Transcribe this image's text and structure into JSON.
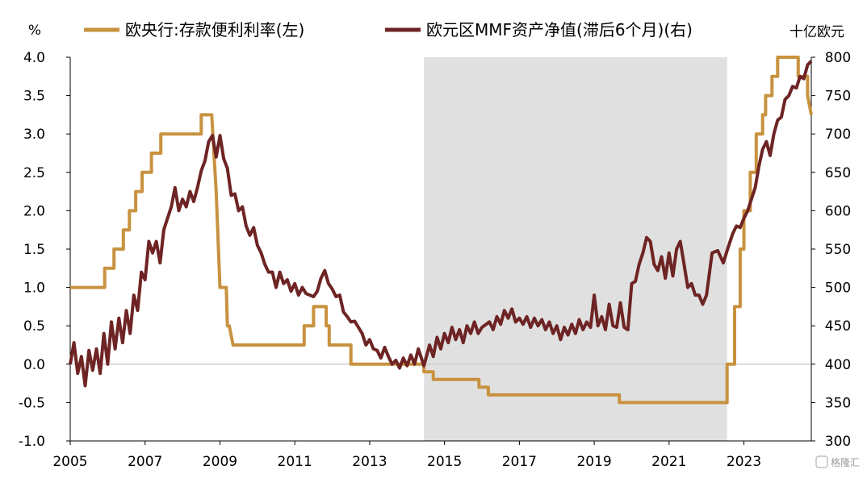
{
  "chart_data": {
    "type": "line",
    "left_unit": "%",
    "right_unit": "十亿欧元",
    "watermark": "格隆汇",
    "legend": [
      "欧央行:存款便利利率(左)",
      "欧元区MMF资产净值(滞后6个月)(右)"
    ],
    "x_ticks": [
      "2005",
      "2007",
      "2009",
      "2011",
      "2013",
      "2015",
      "2017",
      "2019",
      "2021",
      "2023"
    ],
    "y_left_ticks": [
      "4.0",
      "3.5",
      "3.0",
      "2.5",
      "2.0",
      "1.5",
      "1.0",
      "0.5",
      "0.0",
      "-0.5",
      "-1.0"
    ],
    "y_right_ticks": [
      "800",
      "750",
      "700",
      "650",
      "600",
      "550",
      "500",
      "450",
      "400",
      "350",
      "300"
    ],
    "x_range": [
      2005.0,
      2024.8
    ],
    "y_left_range": [
      -1.0,
      4.0
    ],
    "y_right_range": [
      300,
      800
    ],
    "shaded_region": {
      "x_start": 2014.45,
      "x_end": 2022.55,
      "color": "#e0e0e0"
    },
    "colors": {
      "rate": "#c8923f",
      "mmf": "#6e2424",
      "zero_line": "#d0d0d0"
    },
    "series": [
      {
        "name": "欧央行:存款便利利率(左)",
        "axis": "left",
        "points": [
          [
            2005.0,
            1.0
          ],
          [
            2005.92,
            1.0
          ],
          [
            2005.92,
            1.25
          ],
          [
            2006.17,
            1.25
          ],
          [
            2006.17,
            1.5
          ],
          [
            2006.42,
            1.5
          ],
          [
            2006.42,
            1.75
          ],
          [
            2006.58,
            1.75
          ],
          [
            2006.58,
            2.0
          ],
          [
            2006.75,
            2.0
          ],
          [
            2006.75,
            2.25
          ],
          [
            2006.92,
            2.25
          ],
          [
            2006.92,
            2.5
          ],
          [
            2007.17,
            2.5
          ],
          [
            2007.17,
            2.75
          ],
          [
            2007.42,
            2.75
          ],
          [
            2007.42,
            3.0
          ],
          [
            2008.5,
            3.0
          ],
          [
            2008.5,
            3.25
          ],
          [
            2008.78,
            3.25
          ],
          [
            2008.84,
            2.75
          ],
          [
            2008.9,
            2.25
          ],
          [
            2008.96,
            1.5
          ],
          [
            2009.0,
            1.0
          ],
          [
            2009.17,
            1.0
          ],
          [
            2009.2,
            0.5
          ],
          [
            2009.25,
            0.5
          ],
          [
            2009.35,
            0.25
          ],
          [
            2011.25,
            0.25
          ],
          [
            2011.25,
            0.5
          ],
          [
            2011.5,
            0.5
          ],
          [
            2011.5,
            0.75
          ],
          [
            2011.84,
            0.75
          ],
          [
            2011.84,
            0.5
          ],
          [
            2011.92,
            0.5
          ],
          [
            2011.92,
            0.25
          ],
          [
            2012.5,
            0.25
          ],
          [
            2012.5,
            0.0
          ],
          [
            2014.45,
            0.0
          ],
          [
            2014.45,
            -0.1
          ],
          [
            2014.7,
            -0.1
          ],
          [
            2014.7,
            -0.2
          ],
          [
            2015.92,
            -0.2
          ],
          [
            2015.92,
            -0.3
          ],
          [
            2016.17,
            -0.3
          ],
          [
            2016.17,
            -0.4
          ],
          [
            2019.67,
            -0.4
          ],
          [
            2019.67,
            -0.5
          ],
          [
            2022.55,
            -0.5
          ],
          [
            2022.55,
            0.0
          ],
          [
            2022.75,
            0.0
          ],
          [
            2022.75,
            0.75
          ],
          [
            2022.9,
            0.75
          ],
          [
            2022.9,
            1.5
          ],
          [
            2023.0,
            1.5
          ],
          [
            2023.0,
            2.0
          ],
          [
            2023.17,
            2.0
          ],
          [
            2023.17,
            2.5
          ],
          [
            2023.33,
            2.5
          ],
          [
            2023.33,
            3.0
          ],
          [
            2023.5,
            3.0
          ],
          [
            2023.5,
            3.25
          ],
          [
            2023.58,
            3.25
          ],
          [
            2023.58,
            3.5
          ],
          [
            2023.75,
            3.5
          ],
          [
            2023.75,
            3.75
          ],
          [
            2023.9,
            3.75
          ],
          [
            2023.9,
            4.0
          ],
          [
            2024.45,
            4.0
          ],
          [
            2024.45,
            3.75
          ],
          [
            2024.7,
            3.75
          ],
          [
            2024.7,
            3.5
          ],
          [
            2024.8,
            3.25
          ]
        ]
      },
      {
        "name": "欧元区MMF资产净值(滞后6个月)(右)",
        "axis": "right",
        "points": [
          [
            2005.0,
            400
          ],
          [
            2005.1,
            428
          ],
          [
            2005.2,
            388
          ],
          [
            2005.3,
            410
          ],
          [
            2005.4,
            372
          ],
          [
            2005.5,
            418
          ],
          [
            2005.6,
            392
          ],
          [
            2005.7,
            420
          ],
          [
            2005.8,
            388
          ],
          [
            2005.9,
            440
          ],
          [
            2006.0,
            400
          ],
          [
            2006.1,
            455
          ],
          [
            2006.2,
            420
          ],
          [
            2006.3,
            460
          ],
          [
            2006.4,
            428
          ],
          [
            2006.5,
            470
          ],
          [
            2006.6,
            440
          ],
          [
            2006.7,
            490
          ],
          [
            2006.8,
            470
          ],
          [
            2006.9,
            520
          ],
          [
            2007.0,
            510
          ],
          [
            2007.1,
            560
          ],
          [
            2007.2,
            545
          ],
          [
            2007.3,
            560
          ],
          [
            2007.4,
            532
          ],
          [
            2007.5,
            575
          ],
          [
            2007.6,
            590
          ],
          [
            2007.7,
            605
          ],
          [
            2007.8,
            630
          ],
          [
            2007.9,
            600
          ],
          [
            2008.0,
            615
          ],
          [
            2008.1,
            605
          ],
          [
            2008.2,
            625
          ],
          [
            2008.3,
            612
          ],
          [
            2008.4,
            630
          ],
          [
            2008.5,
            652
          ],
          [
            2008.6,
            665
          ],
          [
            2008.7,
            690
          ],
          [
            2008.8,
            698
          ],
          [
            2008.9,
            670
          ],
          [
            2009.0,
            698
          ],
          [
            2009.1,
            668
          ],
          [
            2009.2,
            655
          ],
          [
            2009.3,
            620
          ],
          [
            2009.4,
            622
          ],
          [
            2009.5,
            600
          ],
          [
            2009.6,
            605
          ],
          [
            2009.7,
            580
          ],
          [
            2009.8,
            568
          ],
          [
            2009.9,
            578
          ],
          [
            2010.0,
            555
          ],
          [
            2010.1,
            545
          ],
          [
            2010.2,
            530
          ],
          [
            2010.3,
            520
          ],
          [
            2010.4,
            520
          ],
          [
            2010.5,
            500
          ],
          [
            2010.6,
            520
          ],
          [
            2010.7,
            505
          ],
          [
            2010.8,
            510
          ],
          [
            2010.9,
            495
          ],
          [
            2011.0,
            505
          ],
          [
            2011.1,
            490
          ],
          [
            2011.2,
            500
          ],
          [
            2011.3,
            492
          ],
          [
            2011.5,
            488
          ],
          [
            2011.6,
            495
          ],
          [
            2011.7,
            512
          ],
          [
            2011.8,
            522
          ],
          [
            2011.9,
            505
          ],
          [
            2012.0,
            498
          ],
          [
            2012.1,
            488
          ],
          [
            2012.2,
            490
          ],
          [
            2012.3,
            468
          ],
          [
            2012.4,
            462
          ],
          [
            2012.5,
            455
          ],
          [
            2012.6,
            456
          ],
          [
            2012.7,
            448
          ],
          [
            2012.8,
            440
          ],
          [
            2012.9,
            425
          ],
          [
            2013.0,
            432
          ],
          [
            2013.1,
            420
          ],
          [
            2013.2,
            418
          ],
          [
            2013.3,
            408
          ],
          [
            2013.4,
            422
          ],
          [
            2013.5,
            410
          ],
          [
            2013.6,
            400
          ],
          [
            2013.7,
            405
          ],
          [
            2013.8,
            395
          ],
          [
            2013.9,
            408
          ],
          [
            2014.0,
            398
          ],
          [
            2014.1,
            412
          ],
          [
            2014.2,
            400
          ],
          [
            2014.3,
            420
          ],
          [
            2014.45,
            398
          ],
          [
            2014.6,
            425
          ],
          [
            2014.7,
            410
          ],
          [
            2014.8,
            435
          ],
          [
            2014.9,
            420
          ],
          [
            2015.0,
            440
          ],
          [
            2015.1,
            428
          ],
          [
            2015.2,
            448
          ],
          [
            2015.3,
            432
          ],
          [
            2015.4,
            445
          ],
          [
            2015.5,
            428
          ],
          [
            2015.6,
            450
          ],
          [
            2015.7,
            440
          ],
          [
            2015.8,
            455
          ],
          [
            2015.9,
            440
          ],
          [
            2016.0,
            448
          ],
          [
            2016.2,
            455
          ],
          [
            2016.3,
            445
          ],
          [
            2016.4,
            462
          ],
          [
            2016.5,
            452
          ],
          [
            2016.6,
            470
          ],
          [
            2016.7,
            460
          ],
          [
            2016.8,
            472
          ],
          [
            2016.9,
            455
          ],
          [
            2017.0,
            460
          ],
          [
            2017.1,
            452
          ],
          [
            2017.2,
            462
          ],
          [
            2017.3,
            448
          ],
          [
            2017.4,
            460
          ],
          [
            2017.5,
            450
          ],
          [
            2017.6,
            458
          ],
          [
            2017.7,
            445
          ],
          [
            2017.8,
            455
          ],
          [
            2017.9,
            440
          ],
          [
            2018.0,
            450
          ],
          [
            2018.1,
            432
          ],
          [
            2018.2,
            448
          ],
          [
            2018.3,
            438
          ],
          [
            2018.4,
            452
          ],
          [
            2018.5,
            440
          ],
          [
            2018.6,
            458
          ],
          [
            2018.7,
            445
          ],
          [
            2018.8,
            455
          ],
          [
            2018.9,
            448
          ],
          [
            2019.0,
            490
          ],
          [
            2019.1,
            450
          ],
          [
            2019.2,
            462
          ],
          [
            2019.3,
            445
          ],
          [
            2019.4,
            478
          ],
          [
            2019.5,
            450
          ],
          [
            2019.6,
            448
          ],
          [
            2019.7,
            480
          ],
          [
            2019.8,
            448
          ],
          [
            2019.9,
            445
          ],
          [
            2020.0,
            505
          ],
          [
            2020.1,
            508
          ],
          [
            2020.2,
            530
          ],
          [
            2020.3,
            545
          ],
          [
            2020.4,
            565
          ],
          [
            2020.5,
            560
          ],
          [
            2020.6,
            530
          ],
          [
            2020.7,
            522
          ],
          [
            2020.8,
            540
          ],
          [
            2020.9,
            512
          ],
          [
            2021.0,
            545
          ],
          [
            2021.1,
            515
          ],
          [
            2021.2,
            550
          ],
          [
            2021.3,
            560
          ],
          [
            2021.4,
            530
          ],
          [
            2021.5,
            500
          ],
          [
            2021.6,
            505
          ],
          [
            2021.7,
            490
          ],
          [
            2021.8,
            490
          ],
          [
            2021.9,
            478
          ],
          [
            2022.0,
            490
          ],
          [
            2022.15,
            545
          ],
          [
            2022.3,
            548
          ],
          [
            2022.45,
            532
          ],
          [
            2022.55,
            548
          ],
          [
            2022.7,
            570
          ],
          [
            2022.8,
            580
          ],
          [
            2022.9,
            578
          ],
          [
            2023.0,
            590
          ],
          [
            2023.1,
            600
          ],
          [
            2023.2,
            615
          ],
          [
            2023.3,
            630
          ],
          [
            2023.4,
            658
          ],
          [
            2023.5,
            680
          ],
          [
            2023.6,
            690
          ],
          [
            2023.7,
            672
          ],
          [
            2023.8,
            700
          ],
          [
            2023.9,
            718
          ],
          [
            2024.0,
            722
          ],
          [
            2024.1,
            745
          ],
          [
            2024.2,
            750
          ],
          [
            2024.3,
            762
          ],
          [
            2024.4,
            760
          ],
          [
            2024.5,
            775
          ],
          [
            2024.6,
            772
          ],
          [
            2024.7,
            790
          ],
          [
            2024.8,
            795
          ]
        ]
      }
    ]
  }
}
